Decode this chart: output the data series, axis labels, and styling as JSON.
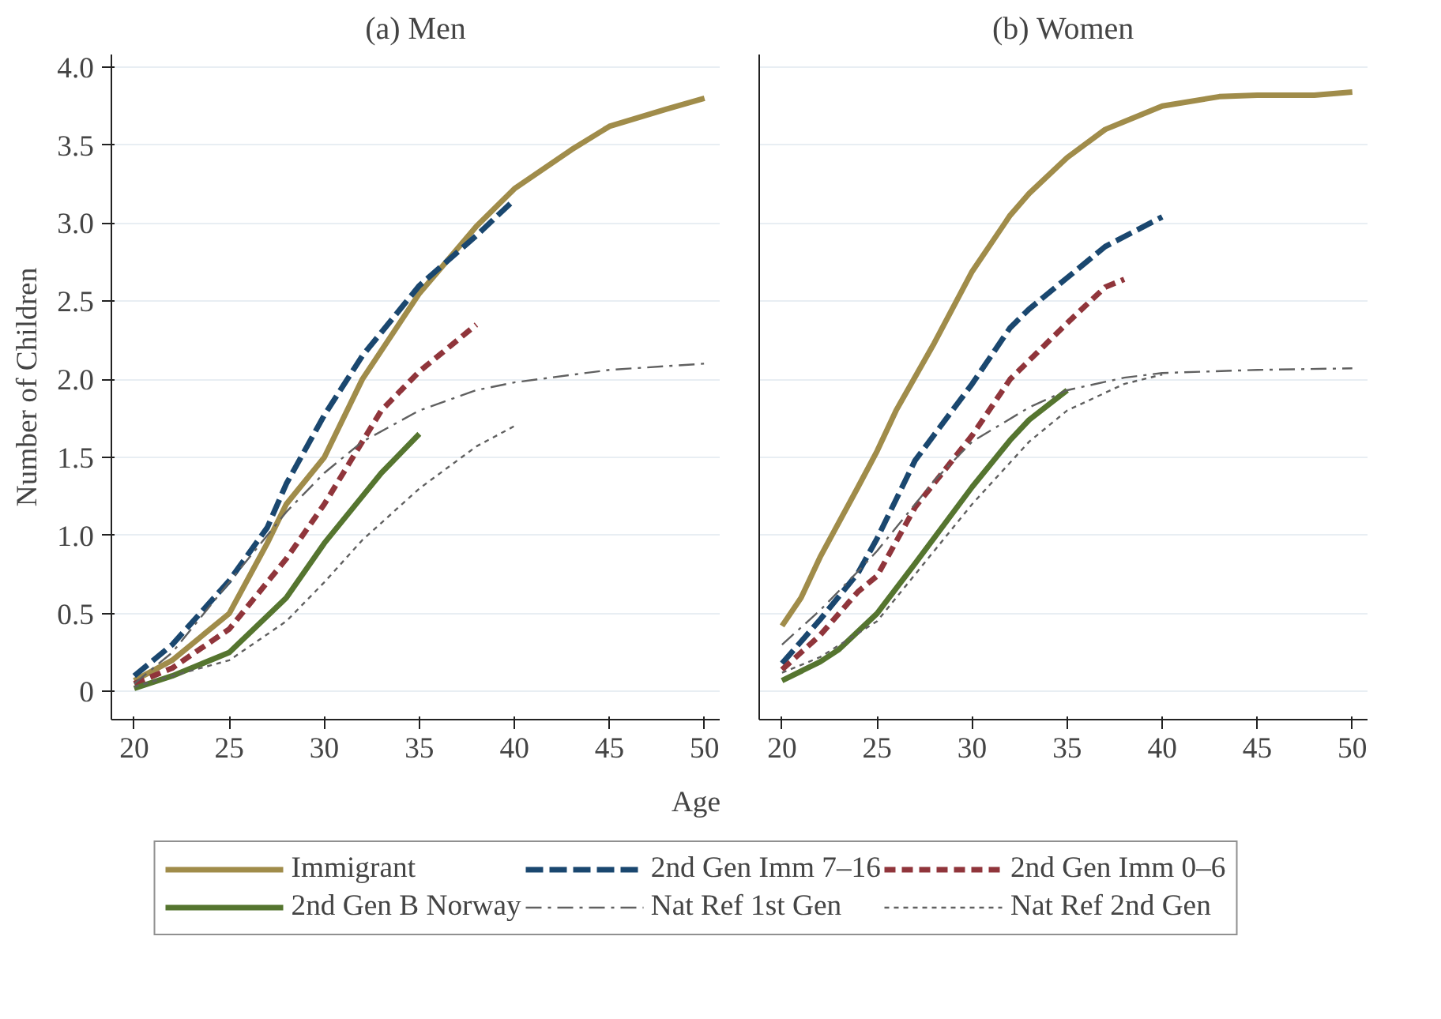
{
  "chart_data": [
    {
      "type": "line",
      "title": "(a) Men",
      "ylabel": "Number of Children",
      "xlabel": "Age",
      "xlim": [
        18.8,
        50.8
      ],
      "ylim": [
        -0.18,
        4.08
      ],
      "xticks": [
        20,
        25,
        30,
        35,
        40,
        45,
        50
      ],
      "yticks": [
        0,
        {
          "value": 0.5,
          "label": "0.5"
        },
        {
          "value": 1,
          "label": "1.0"
        },
        {
          "value": 1.5,
          "label": "1.5"
        },
        {
          "value": 2,
          "label": "2.0"
        },
        {
          "value": 2.5,
          "label": "2.5"
        },
        {
          "value": 3,
          "label": "3.0"
        },
        {
          "value": 3.5,
          "label": "3.5"
        },
        {
          "value": 4,
          "label": "4.0"
        }
      ],
      "grid": "y",
      "legend": "bottom",
      "series": [
        {
          "name": "Immigrant",
          "color": "#a08c4a",
          "line_style": "solid",
          "x": [
            20,
            22,
            25,
            27,
            28,
            30,
            32,
            35,
            38,
            40,
            43,
            45,
            48,
            50
          ],
          "values": [
            0.07,
            0.2,
            0.5,
            0.95,
            1.2,
            1.5,
            2.0,
            2.55,
            2.98,
            3.22,
            3.47,
            3.62,
            3.73,
            3.8
          ]
        },
        {
          "name": "2nd Gen Imm 7–16",
          "color": "#1a476f",
          "line_style": "dashed",
          "x": [
            20,
            22,
            25,
            27,
            28,
            30,
            32,
            35,
            38,
            40
          ],
          "values": [
            0.1,
            0.3,
            0.71,
            1.05,
            1.33,
            1.77,
            2.15,
            2.6,
            2.92,
            3.15
          ]
        },
        {
          "name": "2nd Gen Imm 0–6",
          "color": "#90353b",
          "line_style": "dotted",
          "x": [
            20,
            22,
            25,
            28,
            30,
            32,
            33,
            35,
            38
          ],
          "values": [
            0.05,
            0.15,
            0.4,
            0.85,
            1.2,
            1.6,
            1.8,
            2.05,
            2.35
          ]
        },
        {
          "name": "2nd Gen B Norway",
          "color": "#55752f",
          "line_style": "solid",
          "x": [
            20,
            22,
            25,
            28,
            30,
            32,
            33,
            35
          ],
          "values": [
            0.02,
            0.1,
            0.25,
            0.6,
            0.95,
            1.25,
            1.4,
            1.65
          ]
        },
        {
          "name": "Nat Ref 1st Gen",
          "color": "#606060",
          "line_style": "dashdot",
          "x": [
            20,
            22,
            25,
            28,
            30,
            32,
            35,
            38,
            40,
            45,
            50
          ],
          "values": [
            0.05,
            0.25,
            0.7,
            1.15,
            1.4,
            1.6,
            1.8,
            1.93,
            1.98,
            2.06,
            2.1
          ]
        },
        {
          "name": "Nat Ref 2nd Gen",
          "color": "#606060",
          "line_style": "short_dashed",
          "x": [
            20,
            22,
            25,
            28,
            30,
            32,
            35,
            38,
            40
          ],
          "values": [
            0.03,
            0.1,
            0.2,
            0.45,
            0.7,
            0.97,
            1.3,
            1.57,
            1.7
          ]
        }
      ]
    },
    {
      "type": "line",
      "title": "(b) Women",
      "xlim": [
        18.8,
        50.8
      ],
      "ylim": [
        -0.18,
        4.08
      ],
      "xticks": [
        20,
        25,
        30,
        35,
        40,
        45,
        50
      ],
      "yticks": [
        {
          "value": 0,
          "label": null
        },
        {
          "value": 0.5,
          "label": null
        },
        {
          "value": 1,
          "label": null
        },
        {
          "value": 1.5,
          "label": null
        },
        {
          "value": 2,
          "label": null
        },
        {
          "value": 2.5,
          "label": null
        },
        {
          "value": 3,
          "label": null
        },
        {
          "value": 3.5,
          "label": null
        },
        {
          "value": 4,
          "label": null
        }
      ],
      "grid": "y",
      "tick_labels": "x",
      "series": [
        {
          "color": "#a08c4a",
          "line_style": "solid",
          "x": [
            20,
            21,
            22,
            24,
            25,
            26,
            28,
            30,
            32,
            33,
            35,
            37,
            38,
            40,
            43,
            45,
            48,
            50
          ],
          "values": [
            0.42,
            0.6,
            0.86,
            1.31,
            1.54,
            1.8,
            2.23,
            2.69,
            3.05,
            3.19,
            3.42,
            3.6,
            3.65,
            3.75,
            3.81,
            3.82,
            3.82,
            3.84
          ]
        },
        {
          "color": "#1a476f",
          "line_style": "dashed",
          "x": [
            20,
            22,
            24,
            25,
            27,
            30,
            32,
            33,
            35,
            37,
            40
          ],
          "values": [
            0.18,
            0.46,
            0.76,
            0.98,
            1.48,
            1.97,
            2.33,
            2.45,
            2.65,
            2.85,
            3.04
          ]
        },
        {
          "color": "#90353b",
          "line_style": "dotted",
          "x": [
            20,
            22,
            24,
            25,
            27,
            30,
            32,
            35,
            37,
            38
          ],
          "values": [
            0.14,
            0.36,
            0.64,
            0.74,
            1.18,
            1.64,
            2.0,
            2.36,
            2.59,
            2.64
          ]
        },
        {
          "color": "#55752f",
          "line_style": "solid",
          "x": [
            20,
            22,
            23,
            25,
            27,
            30,
            32,
            33,
            35
          ],
          "values": [
            0.07,
            0.19,
            0.27,
            0.5,
            0.82,
            1.31,
            1.61,
            1.74,
            1.93
          ]
        },
        {
          "color": "#606060",
          "line_style": "dashdot",
          "x": [
            20,
            22,
            24,
            25,
            28,
            30,
            33,
            35,
            38,
            40,
            45,
            50
          ],
          "values": [
            0.3,
            0.52,
            0.77,
            0.9,
            1.35,
            1.6,
            1.82,
            1.93,
            2.01,
            2.04,
            2.06,
            2.07
          ]
        },
        {
          "color": "#606060",
          "line_style": "short_dashed",
          "x": [
            20,
            22,
            25,
            28,
            30,
            33,
            35,
            38,
            40
          ],
          "values": [
            0.12,
            0.22,
            0.45,
            0.9,
            1.2,
            1.6,
            1.8,
            1.97,
            2.03
          ]
        }
      ]
    }
  ]
}
